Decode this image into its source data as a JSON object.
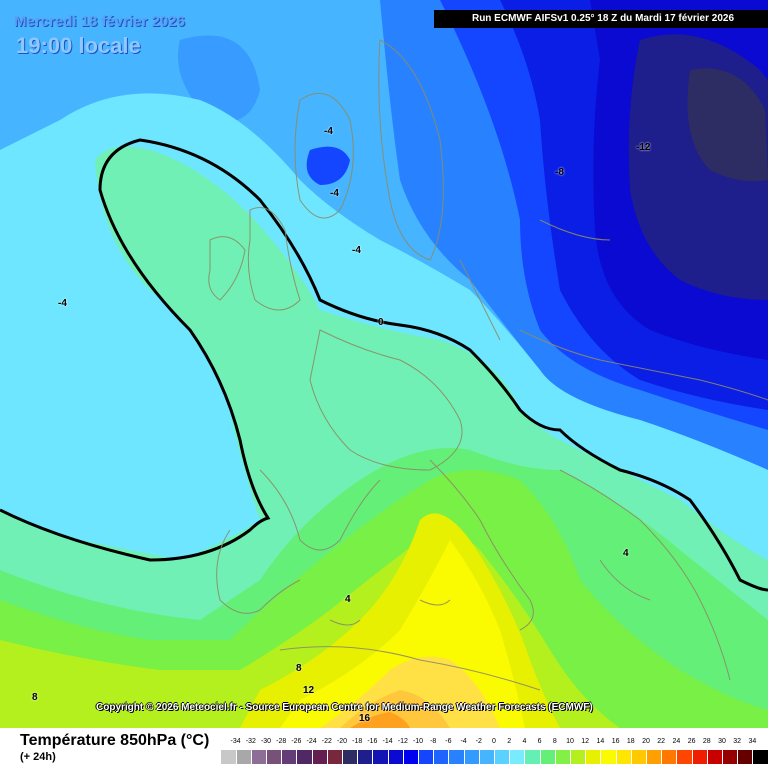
{
  "header": {
    "date": "Mercredi 18 février 2026",
    "local_time": "19:00 locale",
    "run": "Run ECMWF AIFSv1 0.25° 18 Z du Mardi 17 février 2026"
  },
  "copyright": "Copyright © 2026 Meteociel.fr - Source European Centre for Medium-Range Weather Forecasts (ECMWF)",
  "footer": {
    "title": "Température 850hPa (°C)",
    "subtitle": "(+ 24h)"
  },
  "contour_labels": [
    "-4",
    "-4",
    "-4",
    "-4",
    "-8",
    "-12",
    "0",
    "4",
    "4",
    "8",
    "8",
    "12",
    "16"
  ],
  "scale": {
    "ticks": [
      "-34",
      "-32",
      "-30",
      "-28",
      "-26",
      "-24",
      "-22",
      "-20",
      "-18",
      "-16",
      "-14",
      "-12",
      "-10",
      "-8",
      "-6",
      "-4",
      "-2",
      "0",
      "2",
      "4",
      "6",
      "8",
      "10",
      "12",
      "14",
      "16",
      "18",
      "20",
      "22",
      "24",
      "26",
      "28",
      "30",
      "32",
      "34"
    ],
    "colors": [
      "#c8c8c8",
      "#a8a8a8",
      "#8c6e96",
      "#785078",
      "#643c78",
      "#502864",
      "#641e50",
      "#78283c",
      "#2d2d64",
      "#1e1e8c",
      "#1414b4",
      "#0a0ad2",
      "#0000f0",
      "#1446ff",
      "#1e64ff",
      "#2882ff",
      "#329bff",
      "#46b4ff",
      "#5ad2ff",
      "#78ebff",
      "#64f0b4",
      "#64f078",
      "#82f046",
      "#b4f01e",
      "#e6f000",
      "#fafa00",
      "#ffe600",
      "#ffc800",
      "#ffa000",
      "#ff7800",
      "#ff4600",
      "#f01e00",
      "#c80000",
      "#960000",
      "#640000",
      "#000000"
    ]
  },
  "colors": {
    "c_m12": "#282878",
    "c_m8": "#0a1ee6",
    "c_m6": "#1446ff",
    "c_m4": "#2882ff",
    "c_m2": "#46b4ff",
    "c_0": "#6ee6ff",
    "c_2": "#70f0b4",
    "c_4": "#64f078",
    "c_6": "#78f046",
    "c_8": "#b4f01e",
    "c_10": "#e6f000",
    "c_12": "#fafa00",
    "c_14": "#ffe146",
    "c_16": "#ffc83c",
    "c_18": "#ffa01e"
  }
}
